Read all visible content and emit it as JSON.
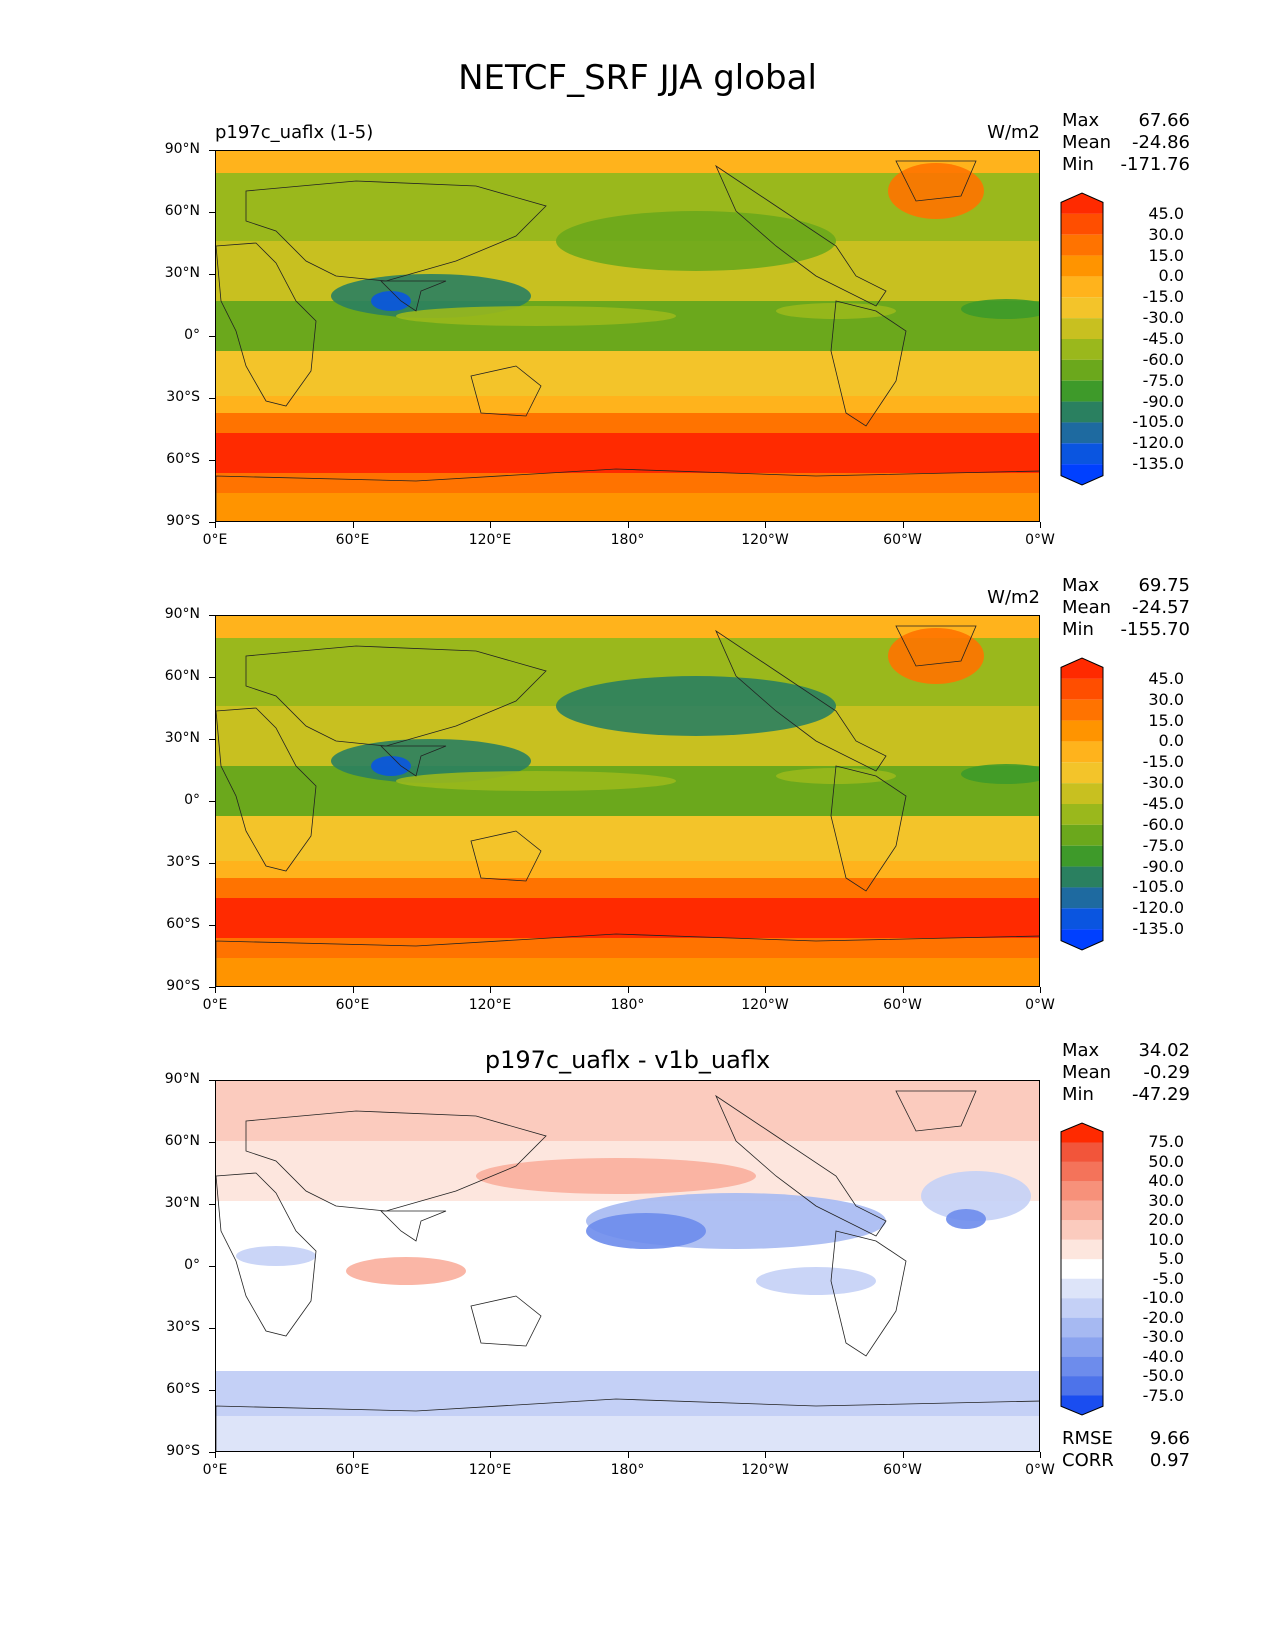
{
  "title": "NETCF_SRF JJA global",
  "axes": {
    "lat_ticks": [
      "90°N",
      "60°N",
      "30°N",
      "0°",
      "30°S",
      "60°S",
      "90°S"
    ],
    "lon_ticks": [
      "0°E",
      "60°E",
      "120°E",
      "180°",
      "120°W",
      "60°W",
      "0°W"
    ]
  },
  "panels": [
    {
      "left_title": "p197c_uaflx (1-5)",
      "center_title": "",
      "units": "W/m2",
      "stats": {
        "max_label": "Max",
        "max": "67.66",
        "mean_label": "Mean",
        "mean": "-24.86",
        "min_label": "Min",
        "min": "-171.76"
      },
      "colorbar": {
        "labels": [
          "45.0",
          "30.0",
          "15.0",
          "0.0",
          "-15.0",
          "-30.0",
          "-45.0",
          "-60.0",
          "-75.0",
          "-90.0",
          "-105.0",
          "-120.0",
          "-135.0"
        ],
        "colors": [
          "#ff2a00",
          "#ff4e00",
          "#ff7300",
          "#ff9400",
          "#ffb31c",
          "#f3c42a",
          "#c8c020",
          "#9ab81c",
          "#6ba81c",
          "#3e9a2a",
          "#2a8060",
          "#1e6aa0",
          "#0a55e0",
          "#0040ff"
        ]
      }
    },
    {
      "left_title": "",
      "center_title": "",
      "units": "W/m2",
      "stats": {
        "max_label": "Max",
        "max": "69.75",
        "mean_label": "Mean",
        "mean": "-24.57",
        "min_label": "Min",
        "min": "-155.70"
      },
      "colorbar": {
        "labels": [
          "45.0",
          "30.0",
          "15.0",
          "0.0",
          "-15.0",
          "-30.0",
          "-45.0",
          "-60.0",
          "-75.0",
          "-90.0",
          "-105.0",
          "-120.0",
          "-135.0"
        ],
        "colors": [
          "#ff2a00",
          "#ff4e00",
          "#ff7300",
          "#ff9400",
          "#ffb31c",
          "#f3c42a",
          "#c8c020",
          "#9ab81c",
          "#6ba81c",
          "#3e9a2a",
          "#2a8060",
          "#1e6aa0",
          "#0a55e0",
          "#0040ff"
        ]
      }
    },
    {
      "left_title": "",
      "center_title": "p197c_uaflx - v1b_uaflx",
      "units": "",
      "stats": {
        "max_label": "Max",
        "max": "34.02",
        "mean_label": "Mean",
        "mean": "-0.29",
        "min_label": "Min",
        "min": "-47.29"
      },
      "colorbar": {
        "labels": [
          "75.0",
          "50.0",
          "40.0",
          "30.0",
          "20.0",
          "10.0",
          "5.0",
          "-5.0",
          "-10.0",
          "-20.0",
          "-30.0",
          "-40.0",
          "-50.0",
          "-75.0"
        ],
        "colors": [
          "#ff2a00",
          "#f2553a",
          "#f4735a",
          "#f7917a",
          "#f9ae9c",
          "#fbcbbe",
          "#fde6de",
          "#ffffff",
          "#dde4f9",
          "#c4d0f6",
          "#a6b9f2",
          "#8aa3ef",
          "#6d8cec",
          "#4d73ea",
          "#1a4df0"
        ]
      },
      "metrics": {
        "rmse_label": "RMSE",
        "rmse": "9.66",
        "corr_label": "CORR",
        "corr": "0.97"
      }
    }
  ]
}
